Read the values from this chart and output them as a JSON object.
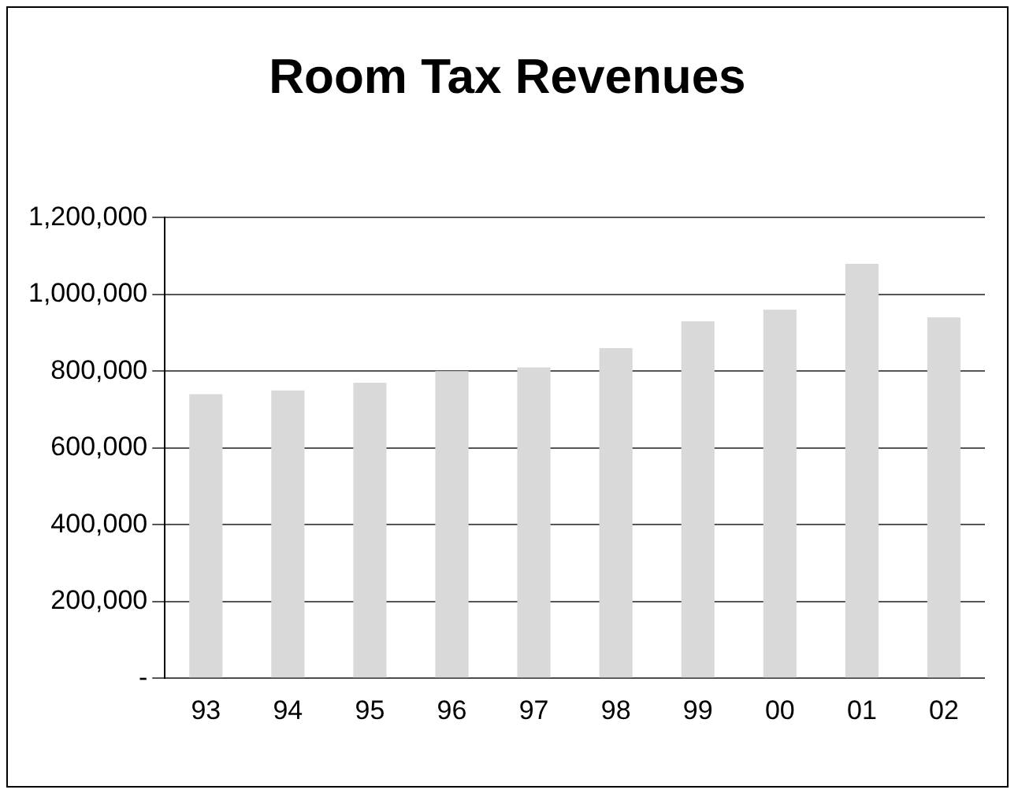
{
  "chart_data": {
    "type": "bar",
    "title": "Room Tax Revenues",
    "categories": [
      "93",
      "94",
      "95",
      "96",
      "97",
      "98",
      "99",
      "00",
      "01",
      "02"
    ],
    "values": [
      740000,
      750000,
      770000,
      800000,
      810000,
      860000,
      930000,
      960000,
      1080000,
      940000
    ],
    "color": "#d9d9d9",
    "ylim": [
      0,
      1200000
    ],
    "yticks": [
      {
        "value": 0,
        "label": "-"
      },
      {
        "value": 200000,
        "label": "200,000"
      },
      {
        "value": 400000,
        "label": "400,000"
      },
      {
        "value": 600000,
        "label": "600,000"
      },
      {
        "value": 800000,
        "label": "800,000"
      },
      {
        "value": 1000000,
        "label": "1,000,000"
      },
      {
        "value": 1200000,
        "label": "1,200,000"
      }
    ],
    "grid": "y",
    "legend": false
  }
}
